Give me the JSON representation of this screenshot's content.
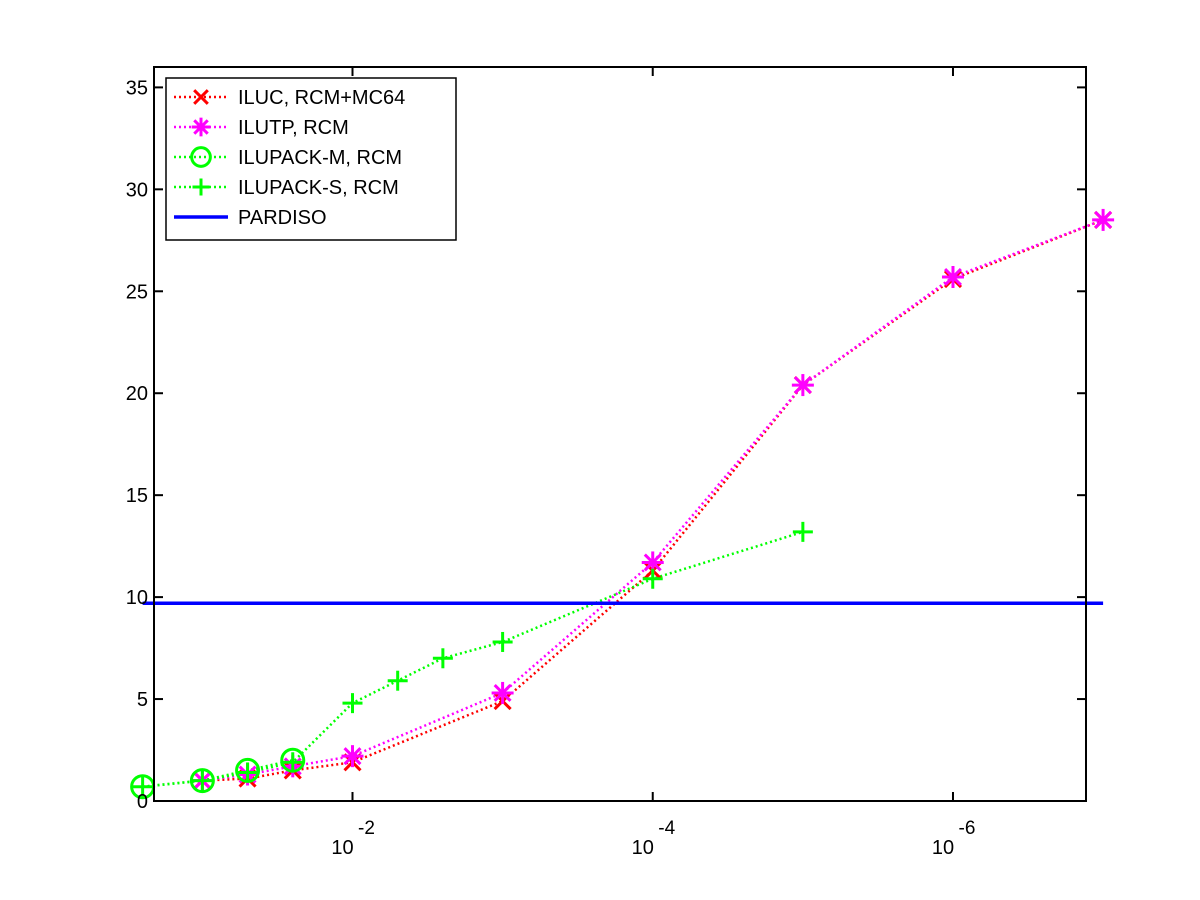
{
  "chart_data": {
    "type": "line",
    "title": "",
    "xlabel": "",
    "ylabel": "",
    "x_scale": "log",
    "x_reversed": true,
    "xlim": [
      0.21,
      1.3e-07
    ],
    "ylim": [
      0,
      36
    ],
    "y_ticks": [
      0,
      5,
      10,
      15,
      20,
      25,
      30,
      35
    ],
    "x_ticks": [
      {
        "value": 0.01,
        "base": "10",
        "exponent": "-2"
      },
      {
        "value": 0.0001,
        "base": "10",
        "exponent": "-4"
      },
      {
        "value": 1e-06,
        "base": "10",
        "exponent": "-6"
      }
    ],
    "grid": false,
    "legend_position": "top-left",
    "series": [
      {
        "name": "ILUC, RCM+MC64",
        "color": "#ff0000",
        "marker": "x",
        "line_style": "dotted",
        "x": [
          0.1,
          0.05,
          0.025,
          0.01,
          0.001,
          0.0001,
          1e-05,
          1e-06,
          1e-07
        ],
        "y": [
          1.0,
          1.1,
          1.5,
          1.9,
          4.9,
          11.3,
          20.4,
          25.6,
          28.5
        ]
      },
      {
        "name": "ILUTP, RCM",
        "color": "#ff00ff",
        "marker": "asterisk",
        "line_style": "dotted",
        "x": [
          0.1,
          0.05,
          0.025,
          0.01,
          0.001,
          0.0001,
          1e-05,
          1e-06,
          1e-07
        ],
        "y": [
          1.0,
          1.3,
          1.7,
          2.2,
          5.3,
          11.7,
          20.4,
          25.7,
          28.5
        ]
      },
      {
        "name": "ILUPACK-M, RCM",
        "color": "#00ff00",
        "marker": "circle",
        "line_style": "dotted",
        "x": [
          0.25,
          0.1,
          0.05,
          0.025
        ],
        "y": [
          0.7,
          1.0,
          1.5,
          2.0
        ]
      },
      {
        "name": "ILUPACK-S, RCM",
        "color": "#00ff00",
        "marker": "plus",
        "line_style": "dotted",
        "x": [
          0.25,
          0.1,
          0.05,
          0.025,
          0.01,
          0.005,
          0.0025,
          0.001,
          0.0001,
          1e-05
        ],
        "y": [
          0.7,
          1.0,
          1.4,
          1.9,
          4.8,
          5.9,
          7.0,
          7.8,
          10.9,
          13.2
        ]
      },
      {
        "name": "PARDISO",
        "color": "#0000ff",
        "marker": "none",
        "line_style": "solid",
        "x": [
          0.25,
          1e-07
        ],
        "y": [
          9.7,
          9.7
        ]
      }
    ]
  }
}
